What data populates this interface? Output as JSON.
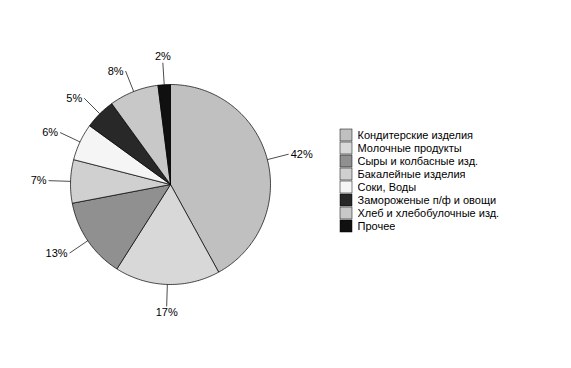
{
  "chart_data": {
    "type": "pie",
    "categories": [
      "Кондитерские изделия",
      "Молочные продукты",
      "Сыры и колбасные изд.",
      "Бакалейные изделия",
      "Соки, Воды",
      "Замороженые п/ф и овощи",
      "Хлеб и хлебобулочные изд.",
      "Прочее"
    ],
    "values": [
      42,
      17,
      13,
      7,
      6,
      5,
      8,
      2
    ],
    "value_labels": [
      "42%",
      "17%",
      "13%",
      "7%",
      "6%",
      "5%",
      "8%",
      "2%"
    ],
    "colors": [
      "#c0c0c0",
      "#d8d8d8",
      "#909090",
      "#d0d0d0",
      "#f5f5f5",
      "#282828",
      "#c8c8c8",
      "#101010"
    ],
    "data_labels": true,
    "legend": "right"
  }
}
